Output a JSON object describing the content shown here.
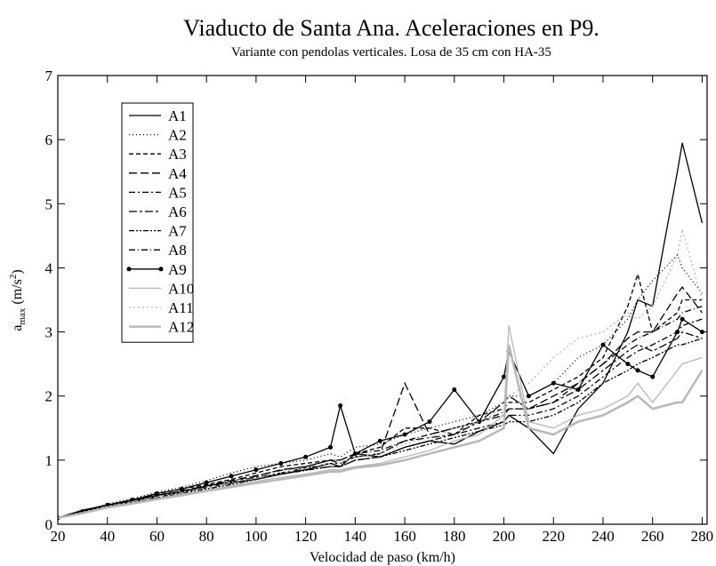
{
  "chart_data": {
    "type": "line",
    "title": "Viaducto de Santa Ana. Aceleraciones en P9.",
    "subtitle": "Variante con pendolas verticales. Losa de 35 cm con HA-35",
    "xlabel": "Velocidad de paso (km/h)",
    "ylabel": {
      "base": "a",
      "sub": "max",
      "unit": " (m/s",
      "sup": "2",
      "close": ")"
    },
    "xlim": [
      20,
      282
    ],
    "ylim": [
      0,
      7
    ],
    "xticks": [
      20,
      40,
      60,
      80,
      100,
      120,
      140,
      160,
      180,
      200,
      220,
      240,
      260,
      280
    ],
    "yticks": [
      0,
      1,
      2,
      3,
      4,
      5,
      6,
      7
    ],
    "legend": "upper left",
    "x": [
      20,
      30,
      40,
      50,
      60,
      70,
      80,
      90,
      100,
      110,
      120,
      130,
      134,
      140,
      150,
      160,
      170,
      180,
      190,
      200,
      202,
      210,
      220,
      230,
      240,
      250,
      254,
      260,
      270,
      272,
      280
    ],
    "series": [
      {
        "name": "A1",
        "color": "#000000",
        "dash": "none",
        "values": [
          0.1,
          0.22,
          0.3,
          0.38,
          0.45,
          0.5,
          0.6,
          0.65,
          0.7,
          0.78,
          0.85,
          0.95,
          0.9,
          1.1,
          1.05,
          1.2,
          1.3,
          1.25,
          1.45,
          1.6,
          1.7,
          1.5,
          1.1,
          1.8,
          2.2,
          3.0,
          3.5,
          3.4,
          5.5,
          5.95,
          4.7
        ]
      },
      {
        "name": "A2",
        "color": "#000000",
        "dash": "1,3",
        "values": [
          0.1,
          0.2,
          0.32,
          0.4,
          0.5,
          0.58,
          0.68,
          0.8,
          0.9,
          0.95,
          1.0,
          1.1,
          1.05,
          1.2,
          1.25,
          1.4,
          1.5,
          1.6,
          1.7,
          1.9,
          2.0,
          2.0,
          2.2,
          2.6,
          2.8,
          3.2,
          3.5,
          3.8,
          4.2,
          4.0,
          3.6
        ]
      },
      {
        "name": "A3",
        "color": "#000000",
        "dash": "5,3",
        "values": [
          0.1,
          0.21,
          0.3,
          0.38,
          0.47,
          0.55,
          0.62,
          0.7,
          0.8,
          0.9,
          0.95,
          1.0,
          1.0,
          1.1,
          1.2,
          1.5,
          1.5,
          1.4,
          1.7,
          1.8,
          1.9,
          1.9,
          2.1,
          2.3,
          2.6,
          3.4,
          3.9,
          3.0,
          3.3,
          3.5,
          3.5
        ]
      },
      {
        "name": "A4",
        "color": "#000000",
        "dash": "9,4",
        "values": [
          0.1,
          0.2,
          0.3,
          0.37,
          0.45,
          0.52,
          0.6,
          0.68,
          0.75,
          0.85,
          0.9,
          1.0,
          0.95,
          1.05,
          1.1,
          2.2,
          1.4,
          1.5,
          1.6,
          1.9,
          2.0,
          1.8,
          2.0,
          2.2,
          2.5,
          2.9,
          3.0,
          3.0,
          3.6,
          3.7,
          3.3
        ]
      },
      {
        "name": "A5",
        "color": "#000000",
        "dash": "7,3,2,3",
        "values": [
          0.1,
          0.18,
          0.28,
          0.35,
          0.42,
          0.5,
          0.57,
          0.64,
          0.7,
          0.8,
          0.85,
          0.9,
          0.9,
          1.0,
          1.05,
          1.2,
          1.3,
          1.4,
          1.5,
          1.6,
          1.7,
          1.7,
          1.8,
          2.0,
          2.3,
          2.6,
          2.7,
          2.8,
          3.0,
          3.1,
          3.2
        ]
      },
      {
        "name": "A6",
        "color": "#000000",
        "dash": "9,3,3,3",
        "values": [
          0.1,
          0.19,
          0.29,
          0.36,
          0.44,
          0.5,
          0.58,
          0.66,
          0.73,
          0.8,
          0.88,
          0.95,
          0.95,
          1.05,
          1.1,
          1.3,
          1.35,
          1.4,
          1.6,
          1.7,
          1.8,
          1.8,
          1.9,
          2.1,
          2.4,
          2.7,
          2.8,
          2.7,
          2.9,
          3.0,
          2.9
        ]
      },
      {
        "name": "A7",
        "color": "#000000",
        "dash": "6,2,2,2,2,2",
        "values": [
          0.1,
          0.18,
          0.27,
          0.34,
          0.41,
          0.48,
          0.55,
          0.62,
          0.7,
          0.78,
          0.84,
          0.9,
          0.9,
          1.0,
          1.05,
          1.15,
          1.25,
          1.35,
          1.45,
          1.55,
          1.6,
          1.6,
          1.7,
          1.9,
          2.2,
          2.4,
          2.5,
          2.6,
          2.8,
          2.8,
          2.9
        ]
      },
      {
        "name": "A8",
        "color": "#000000",
        "dash": "7,3,1,3",
        "values": [
          0.1,
          0.2,
          0.3,
          0.37,
          0.45,
          0.52,
          0.6,
          0.68,
          0.76,
          0.84,
          0.9,
          1.0,
          1.0,
          1.1,
          1.15,
          1.3,
          1.4,
          1.5,
          1.6,
          1.75,
          1.8,
          1.8,
          1.9,
          2.2,
          2.5,
          2.8,
          2.9,
          3.0,
          3.2,
          3.3,
          3.4
        ]
      },
      {
        "name": "A9",
        "color": "#000000",
        "dash": "none",
        "markers": true,
        "values": [
          0.1,
          0.2,
          0.3,
          0.38,
          0.48,
          0.55,
          0.65,
          0.75,
          0.85,
          0.95,
          1.05,
          1.2,
          1.85,
          1.1,
          1.3,
          1.4,
          1.6,
          2.1,
          1.6,
          2.3,
          2.7,
          2.0,
          2.2,
          2.1,
          2.8,
          2.5,
          2.4,
          2.3,
          3.0,
          3.2,
          3.0
        ]
      },
      {
        "name": "A10",
        "color": "#b8b8b8",
        "dash": "none",
        "values": [
          0.1,
          0.18,
          0.27,
          0.33,
          0.4,
          0.47,
          0.53,
          0.6,
          0.67,
          0.73,
          0.78,
          0.85,
          0.85,
          0.9,
          0.95,
          1.05,
          1.15,
          1.3,
          1.4,
          1.7,
          3.1,
          1.6,
          1.5,
          1.7,
          1.8,
          2.0,
          2.2,
          1.9,
          2.4,
          2.5,
          2.6
        ]
      },
      {
        "name": "A11",
        "color": "#b8b8b8",
        "dash": "2,3",
        "values": [
          0.1,
          0.19,
          0.28,
          0.35,
          0.43,
          0.5,
          0.57,
          0.65,
          0.72,
          0.8,
          0.88,
          0.95,
          0.95,
          1.05,
          1.1,
          1.25,
          1.35,
          1.5,
          1.6,
          1.8,
          2.0,
          2.2,
          2.6,
          2.9,
          3.0,
          3.3,
          3.2,
          3.4,
          4.2,
          4.6,
          3.5
        ]
      },
      {
        "name": "A12",
        "color": "#b8b8b8",
        "dash": "none",
        "width": 2.5,
        "values": [
          0.1,
          0.17,
          0.26,
          0.32,
          0.39,
          0.45,
          0.52,
          0.58,
          0.64,
          0.7,
          0.76,
          0.82,
          0.82,
          0.88,
          0.92,
          1.0,
          1.1,
          1.2,
          1.3,
          1.5,
          2.8,
          1.5,
          1.4,
          1.6,
          1.7,
          1.9,
          2.0,
          1.8,
          1.9,
          1.9,
          2.4
        ]
      }
    ]
  }
}
